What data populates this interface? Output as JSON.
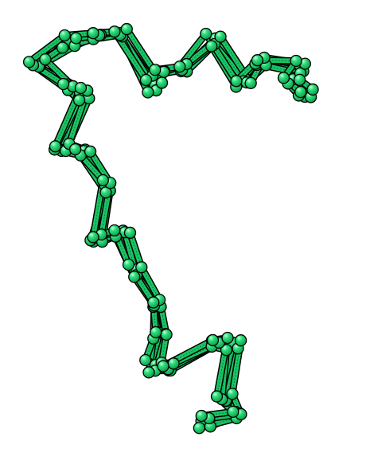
{
  "scene": {
    "background": "#ffffff",
    "subject": "protein-backbone-ensemble",
    "render_style": "ball-and-stick",
    "atom_color": "#1fd46f",
    "atom_highlight": "#b9f7cf",
    "bond_color": "#19c463",
    "outline_color": "#000000",
    "model_count": 5
  }
}
